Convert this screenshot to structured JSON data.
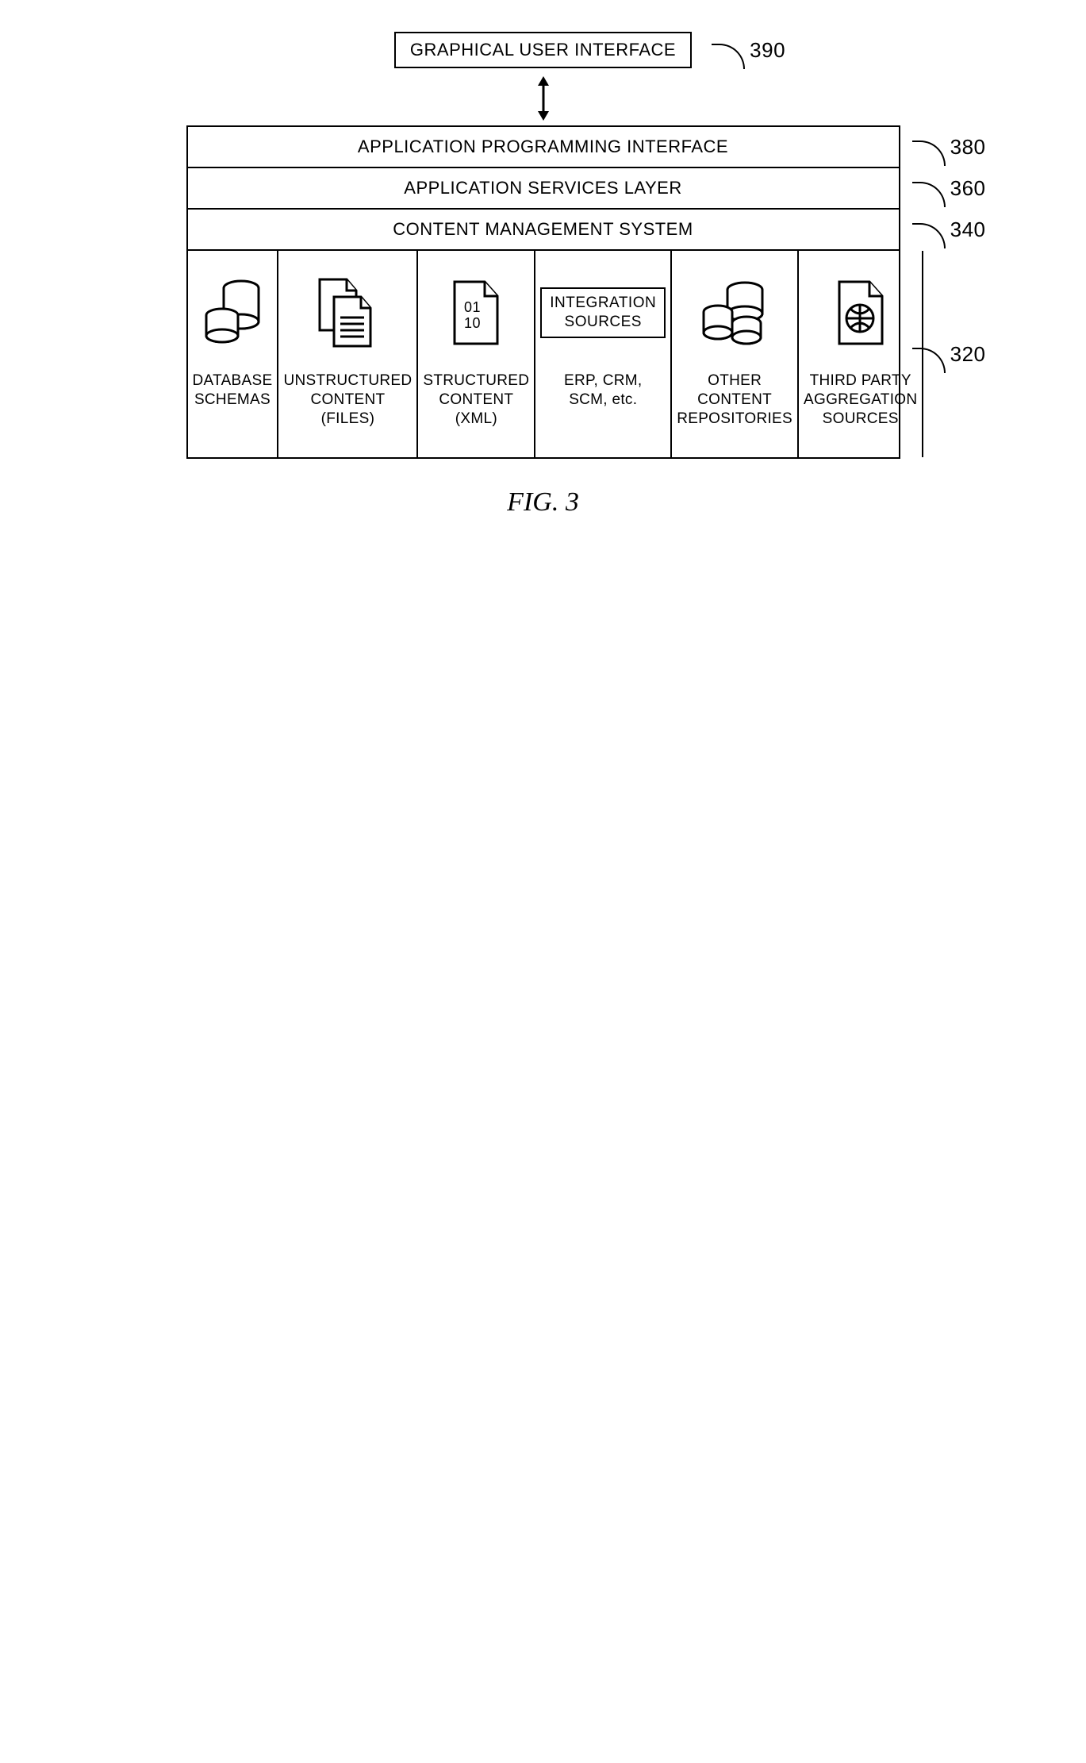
{
  "gui": {
    "label": "GRAPHICAL USER INTERFACE",
    "ref": "390"
  },
  "layers": {
    "api": {
      "label": "APPLICATION PROGRAMMING INTERFACE",
      "ref": "380"
    },
    "asl": {
      "label": "APPLICATION SERVICES LAYER",
      "ref": "360"
    },
    "cms": {
      "label": "CONTENT MANAGEMENT SYSTEM",
      "ref": "340"
    },
    "src": {
      "ref": "320"
    }
  },
  "sources": [
    {
      "key": "db",
      "label": "DATABASE\nSCHEMAS"
    },
    {
      "key": "files",
      "label": "UNSTRUCTURED\nCONTENT (FILES)"
    },
    {
      "key": "xml",
      "label": "STRUCTURED\nCONTENT (XML)",
      "doc_line1": "01",
      "doc_line2": "10"
    },
    {
      "key": "int",
      "label": "ERP, CRM,\nSCM, etc.",
      "box_line1": "INTEGRATION",
      "box_line2": "SOURCES"
    },
    {
      "key": "repo",
      "label": "OTHER\nCONTENT\nREPOSITORIES"
    },
    {
      "key": "third",
      "label": "THIRD PARTY\nAGGREGATION\nSOURCES"
    }
  ],
  "figure_caption": "FIG. 3",
  "style": {
    "stroke": "#000000",
    "stroke_width": 2.5,
    "font_family": "Arial, Helvetica, sans-serif",
    "label_fontsize": 22,
    "source_fontsize": 19,
    "ref_fontsize": 26,
    "caption_fontsize": 34,
    "background": "#ffffff"
  }
}
